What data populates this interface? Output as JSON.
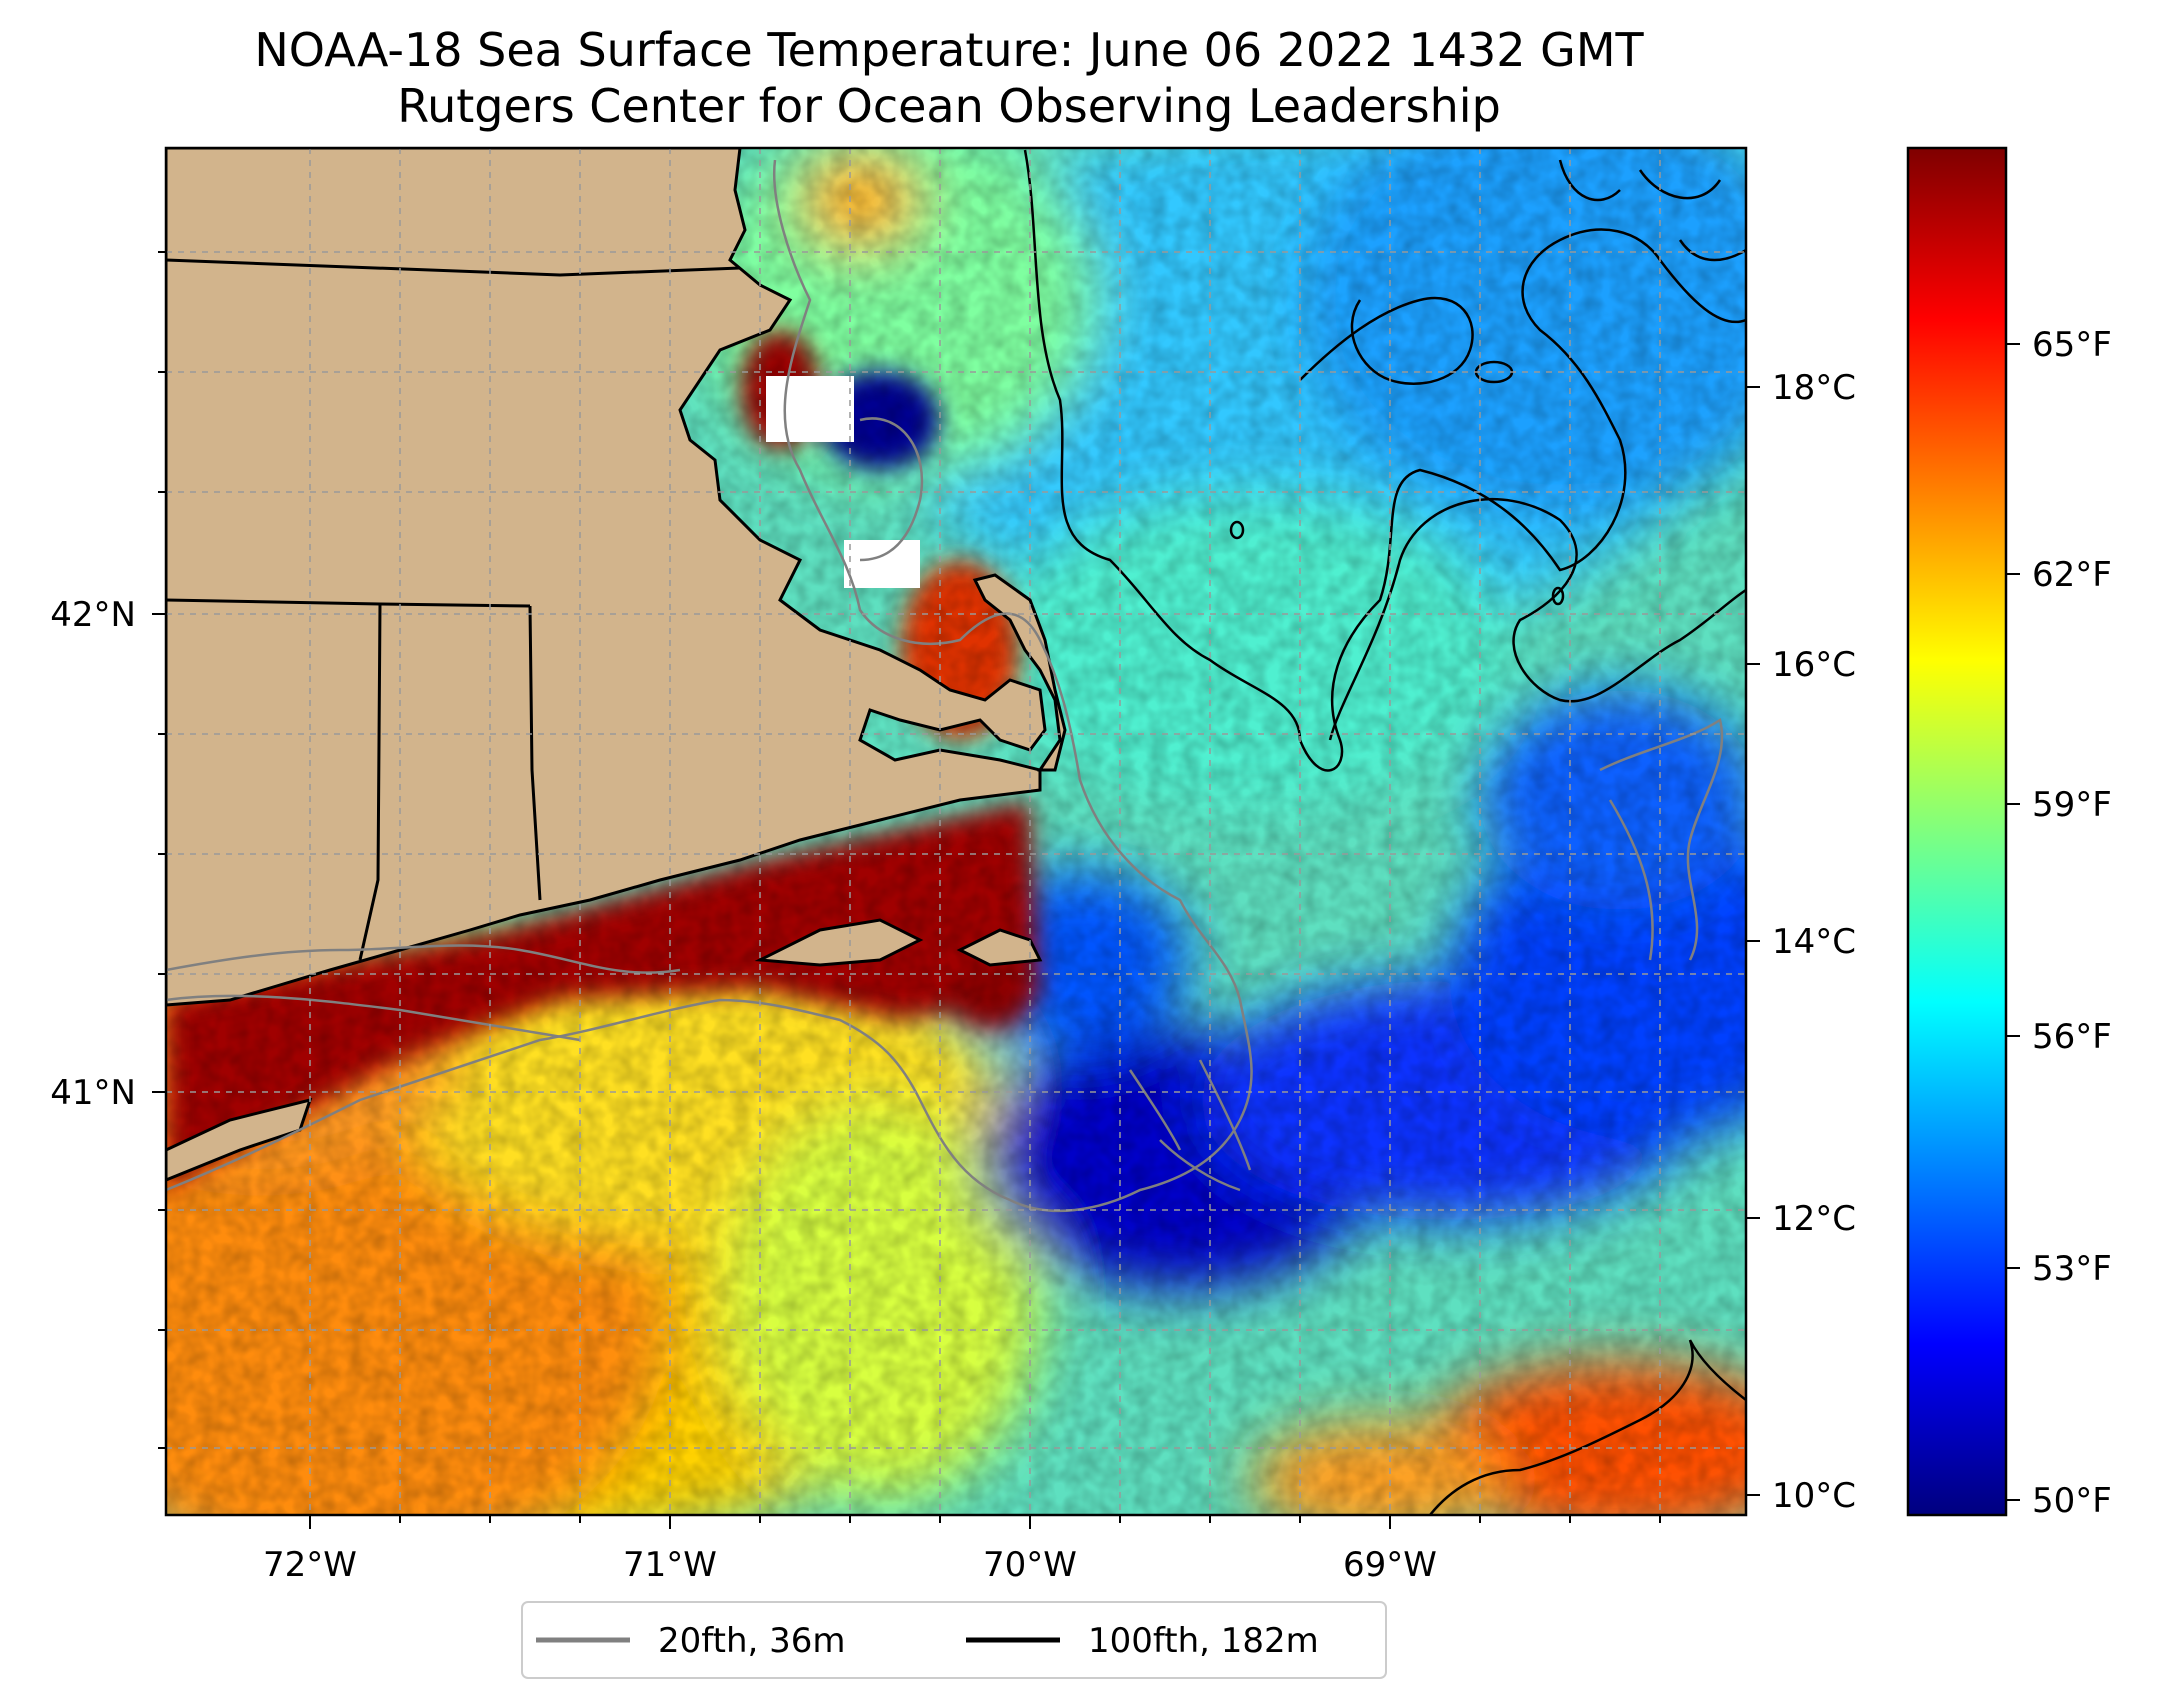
{
  "title": {
    "line1": "NOAA-18 Sea Surface Temperature: June 06 2022 1432 GMT",
    "line2": "Rutgers Center for Ocean Observing Leadership"
  },
  "map": {
    "lon_ticks": [
      "72°W",
      "71°W",
      "70°W",
      "69°W"
    ],
    "lat_ticks": [
      "42°N",
      "41°N"
    ],
    "land_color": "#d2b48c",
    "coastline_color": "#000000",
    "gridlines": true
  },
  "colorbar": {
    "colormap": "jet",
    "celsius_ticks": [
      "10°C",
      "12°C",
      "14°C",
      "16°C",
      "18°C"
    ],
    "fahrenheit_ticks": [
      "50°F",
      "53°F",
      "56°F",
      "59°F",
      "62°F",
      "65°F"
    ],
    "colors": [
      "#00007f",
      "#0000ff",
      "#007fff",
      "#00ffff",
      "#7fff7f",
      "#ffff00",
      "#ff7f00",
      "#ff0000",
      "#7f0000"
    ]
  },
  "legend": {
    "entries": [
      {
        "label": "20fth, 36m",
        "color": "#808080"
      },
      {
        "label": "100fth, 182m",
        "color": "#000000"
      }
    ]
  }
}
